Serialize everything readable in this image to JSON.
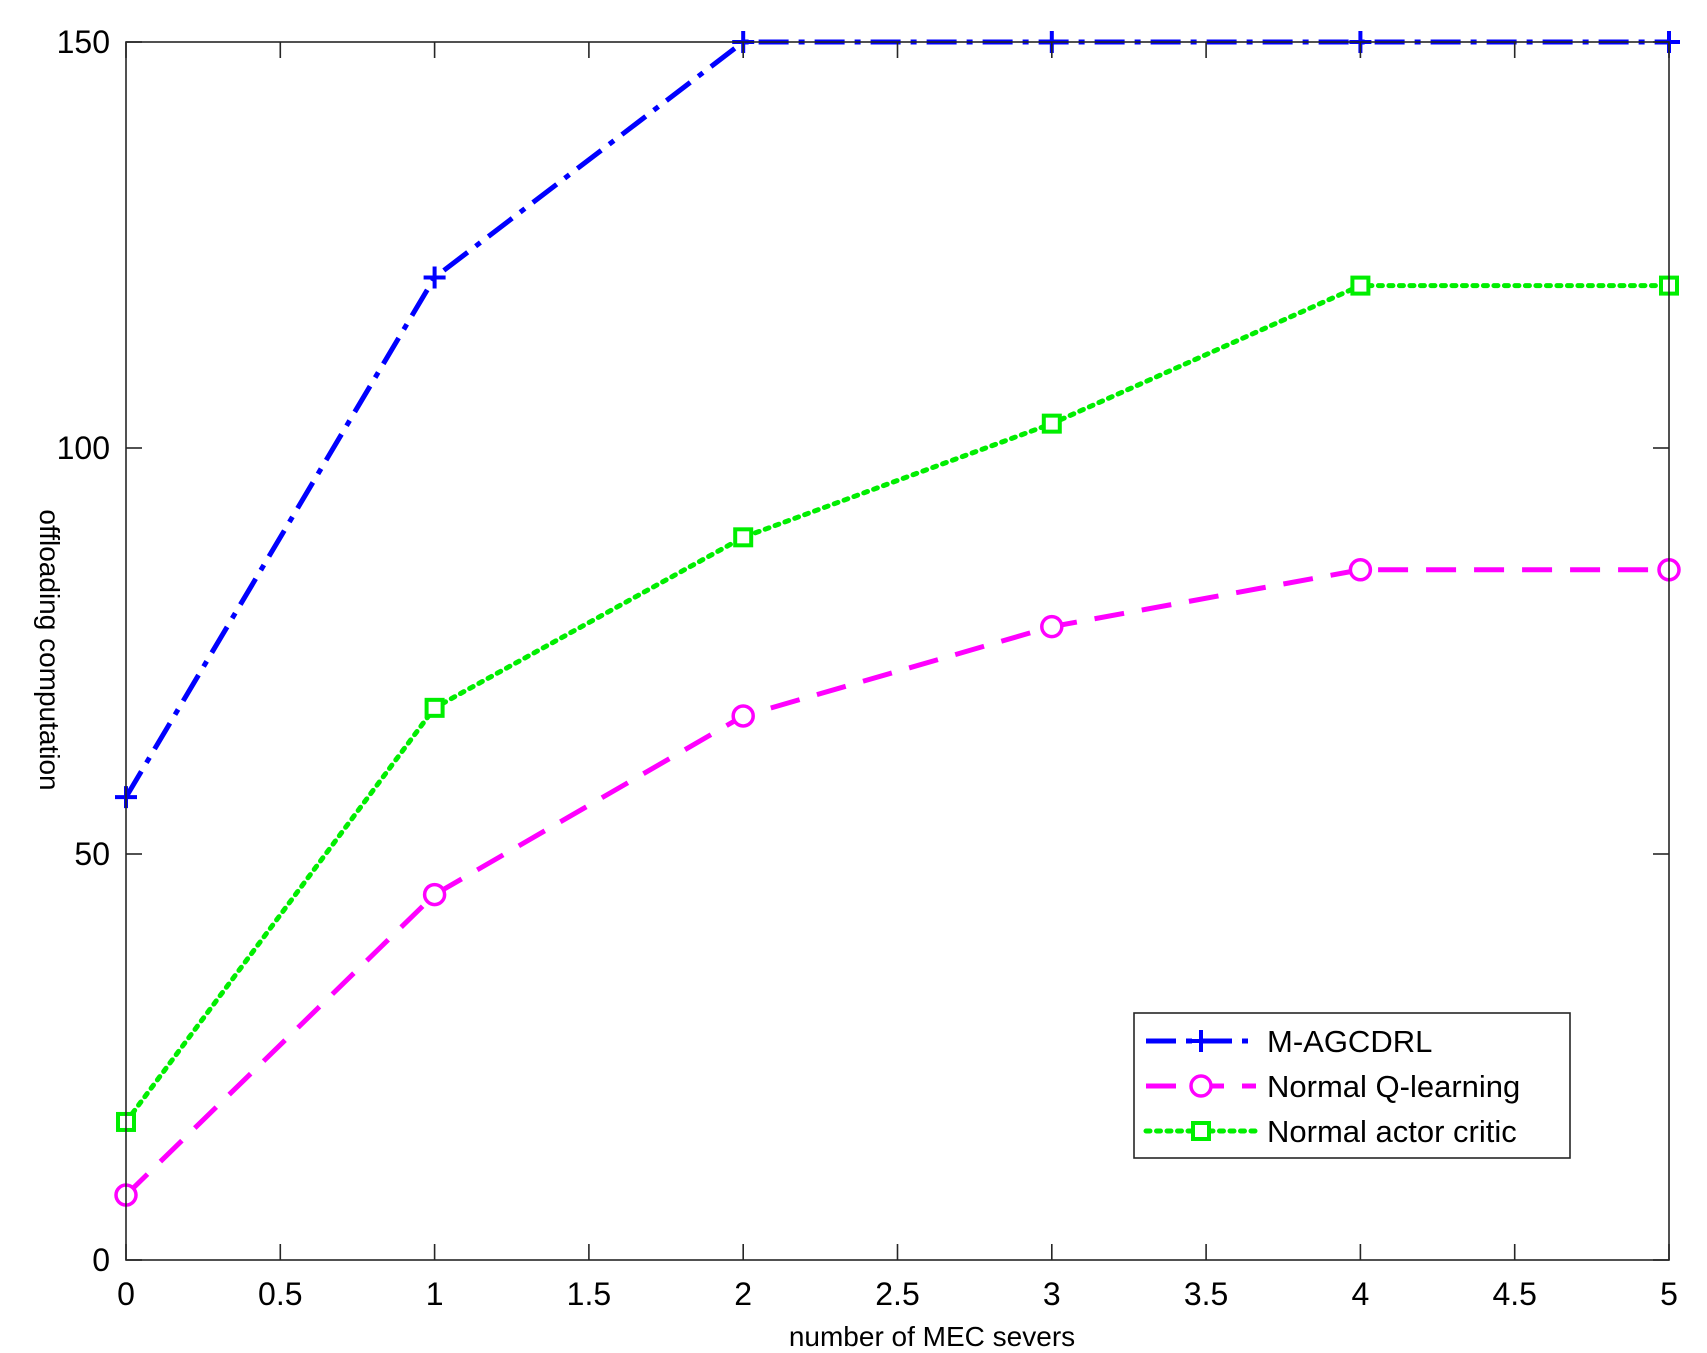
{
  "chart_data": {
    "type": "line",
    "title": "",
    "xlabel": "number of MEC severs",
    "ylabel": "offloading computation",
    "xlim": [
      0,
      5
    ],
    "ylim": [
      0,
      150
    ],
    "xticks": [
      0,
      0.5,
      1,
      1.5,
      2,
      2.5,
      3,
      3.5,
      4,
      4.5,
      5
    ],
    "xtick_labels": [
      "0",
      "0.5",
      "1",
      "1.5",
      "2",
      "2.5",
      "3",
      "3.5",
      "4",
      "4.5",
      "5"
    ],
    "yticks": [
      0,
      50,
      100,
      150
    ],
    "ytick_labels": [
      "0",
      "50",
      "100",
      "150"
    ],
    "grid": false,
    "legend_position": "bottom-right",
    "x": [
      0,
      1,
      2,
      3,
      4,
      5
    ],
    "series": [
      {
        "name": "M-AGCDRL",
        "values": [
          57,
          121,
          150,
          150,
          150,
          150
        ],
        "color": "#0000ff",
        "line_style": "dash-dot",
        "marker": "plus"
      },
      {
        "name": "Normal Q-learning",
        "values": [
          8,
          45,
          67,
          78,
          85,
          85
        ],
        "color": "#ff00ff",
        "line_style": "dashed",
        "marker": "circle"
      },
      {
        "name": "Normal actor critic",
        "values": [
          17,
          68,
          89,
          103,
          120,
          120
        ],
        "color": "#00ee00",
        "line_style": "dotted",
        "marker": "square"
      }
    ]
  }
}
